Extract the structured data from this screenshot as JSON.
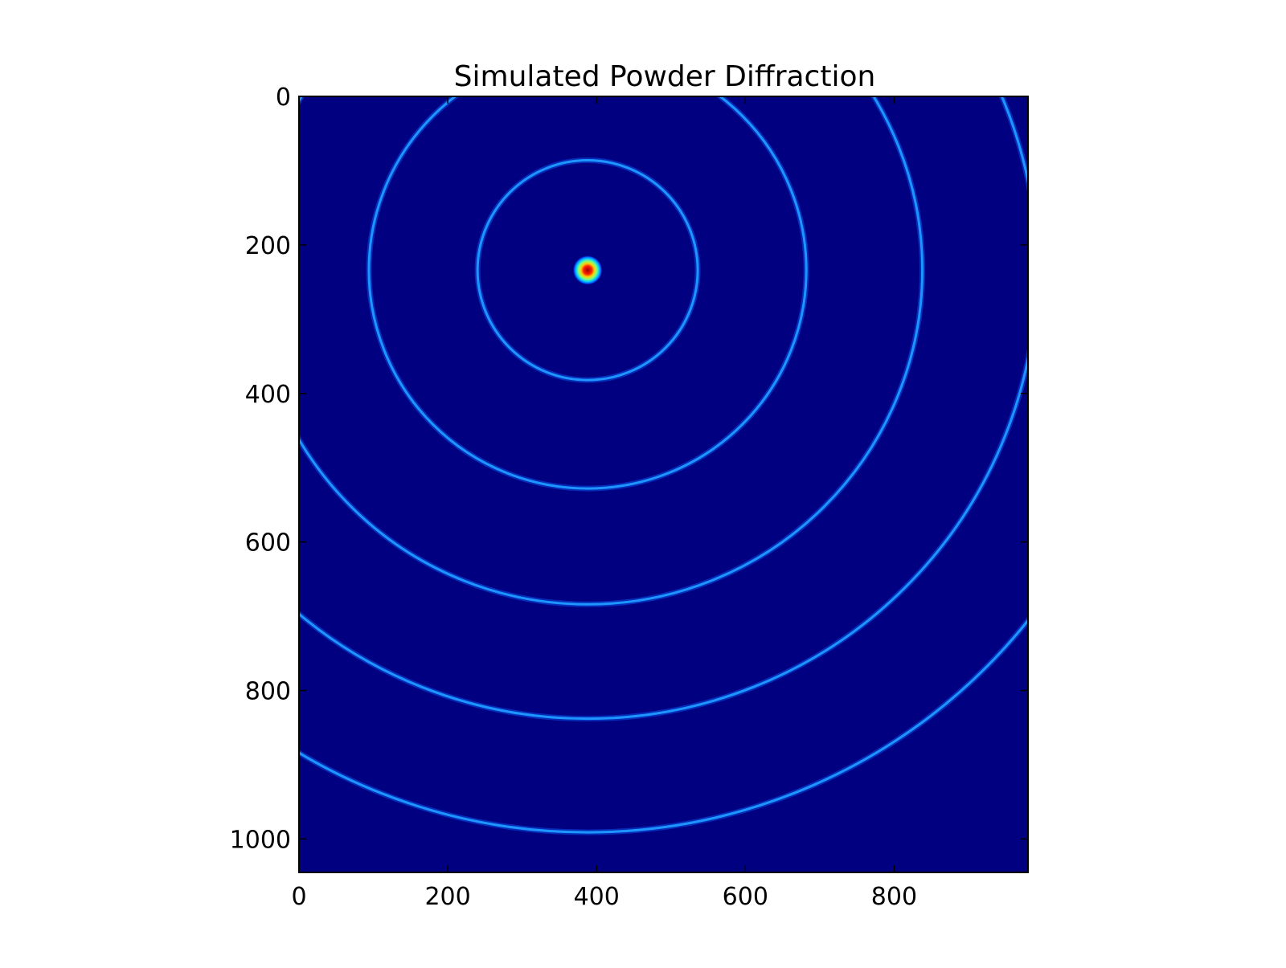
{
  "chart_data": {
    "type": "heatmap",
    "title": "Simulated Powder Diffraction",
    "xlabel": "",
    "ylabel": "",
    "xlim": [
      0,
      980
    ],
    "ylim": [
      1045,
      0
    ],
    "y_axis_inverted": true,
    "x_ticks": [
      0,
      200,
      400,
      600,
      800
    ],
    "y_ticks": [
      0,
      200,
      400,
      600,
      800,
      1000
    ],
    "grid": false,
    "colormap": "jet",
    "background_color": "#000080",
    "ring_color": "#1e96ff",
    "center": {
      "x": 388,
      "y": 234
    },
    "central_spot": {
      "radius": 20,
      "peak_color": "#b40000"
    },
    "ring_radii": [
      148,
      294,
      450,
      604,
      757
    ]
  }
}
